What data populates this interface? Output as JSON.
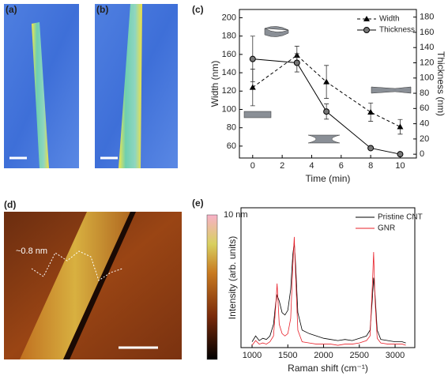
{
  "panel_labels": [
    "(a)",
    "(b)",
    "(c)",
    "(d)",
    "(e)"
  ],
  "afm_colorbar_label": "10 nm",
  "afm_annotation": "~0.8 nm",
  "chart_data": [
    {
      "type": "line",
      "x_label": "Time (min)",
      "y_label": "Width (nm)",
      "y2_label": "Thickness (nm)",
      "x": [
        0,
        3,
        5,
        8,
        10
      ],
      "xlim": [
        -0.9,
        11.1
      ],
      "xticks": [
        0,
        2,
        4,
        6,
        8,
        10
      ],
      "ylim": [
        47,
        209
      ],
      "yticks": [
        60,
        80,
        100,
        120,
        140,
        160,
        180,
        200
      ],
      "y2lim": [
        -5,
        190
      ],
      "y2ticks": [
        0,
        20,
        40,
        60,
        80,
        100,
        120,
        140,
        160,
        180
      ],
      "legend": "upper right",
      "series": [
        {
          "name": "Width",
          "color": "#000000",
          "marker": "triangle",
          "dash": true,
          "values": [
            124,
            159,
            130,
            97,
            81
          ],
          "errors": [
            20,
            10,
            18,
            10,
            8
          ]
        },
        {
          "name": "Thickness",
          "color": "#000000",
          "marker": "circle",
          "dash": false,
          "axis": "y2",
          "values": [
            125,
            120,
            56,
            8,
            0
          ],
          "errors": [
            30,
            12,
            10,
            2,
            2
          ]
        }
      ]
    },
    {
      "type": "line",
      "x_label": "Raman shift (cm⁻¹)",
      "y_label": "Intensity (arb. units)",
      "x": [
        1000,
        1050,
        1100,
        1150,
        1200,
        1250,
        1300,
        1330,
        1350,
        1380,
        1420,
        1460,
        1500,
        1540,
        1570,
        1590,
        1610,
        1640,
        1700,
        1800,
        1900,
        2000,
        2100,
        2200,
        2300,
        2400,
        2500,
        2600,
        2650,
        2680,
        2700,
        2720,
        2750,
        2800,
        2900,
        3000,
        3100,
        3150
      ],
      "xlim": [
        845,
        3276
      ],
      "xticks": [
        1000,
        1500,
        2000,
        2500,
        3000
      ],
      "ylim": [
        0,
        1.2
      ],
      "legend": "upper right",
      "series": [
        {
          "name": "Pristine CNT",
          "color": "#000000",
          "values": [
            0.05,
            0.1,
            0.06,
            0.08,
            0.07,
            0.1,
            0.2,
            0.38,
            0.45,
            0.4,
            0.3,
            0.28,
            0.32,
            0.5,
            0.8,
            0.9,
            0.7,
            0.3,
            0.15,
            0.12,
            0.1,
            0.08,
            0.07,
            0.06,
            0.07,
            0.06,
            0.08,
            0.1,
            0.15,
            0.4,
            0.6,
            0.45,
            0.15,
            0.07,
            0.06,
            0.05,
            0.05,
            0.04
          ]
        },
        {
          "name": "GNR",
          "color": "#e8202a",
          "values": [
            0.02,
            0.06,
            0.03,
            0.04,
            0.03,
            0.05,
            0.1,
            0.35,
            0.55,
            0.2,
            0.12,
            0.1,
            0.12,
            0.25,
            0.7,
            0.95,
            0.6,
            0.15,
            0.05,
            0.04,
            0.03,
            0.03,
            0.03,
            0.02,
            0.03,
            0.03,
            0.04,
            0.06,
            0.1,
            0.5,
            0.82,
            0.4,
            0.08,
            0.04,
            0.03,
            0.03,
            0.03,
            0.02
          ]
        }
      ]
    }
  ]
}
